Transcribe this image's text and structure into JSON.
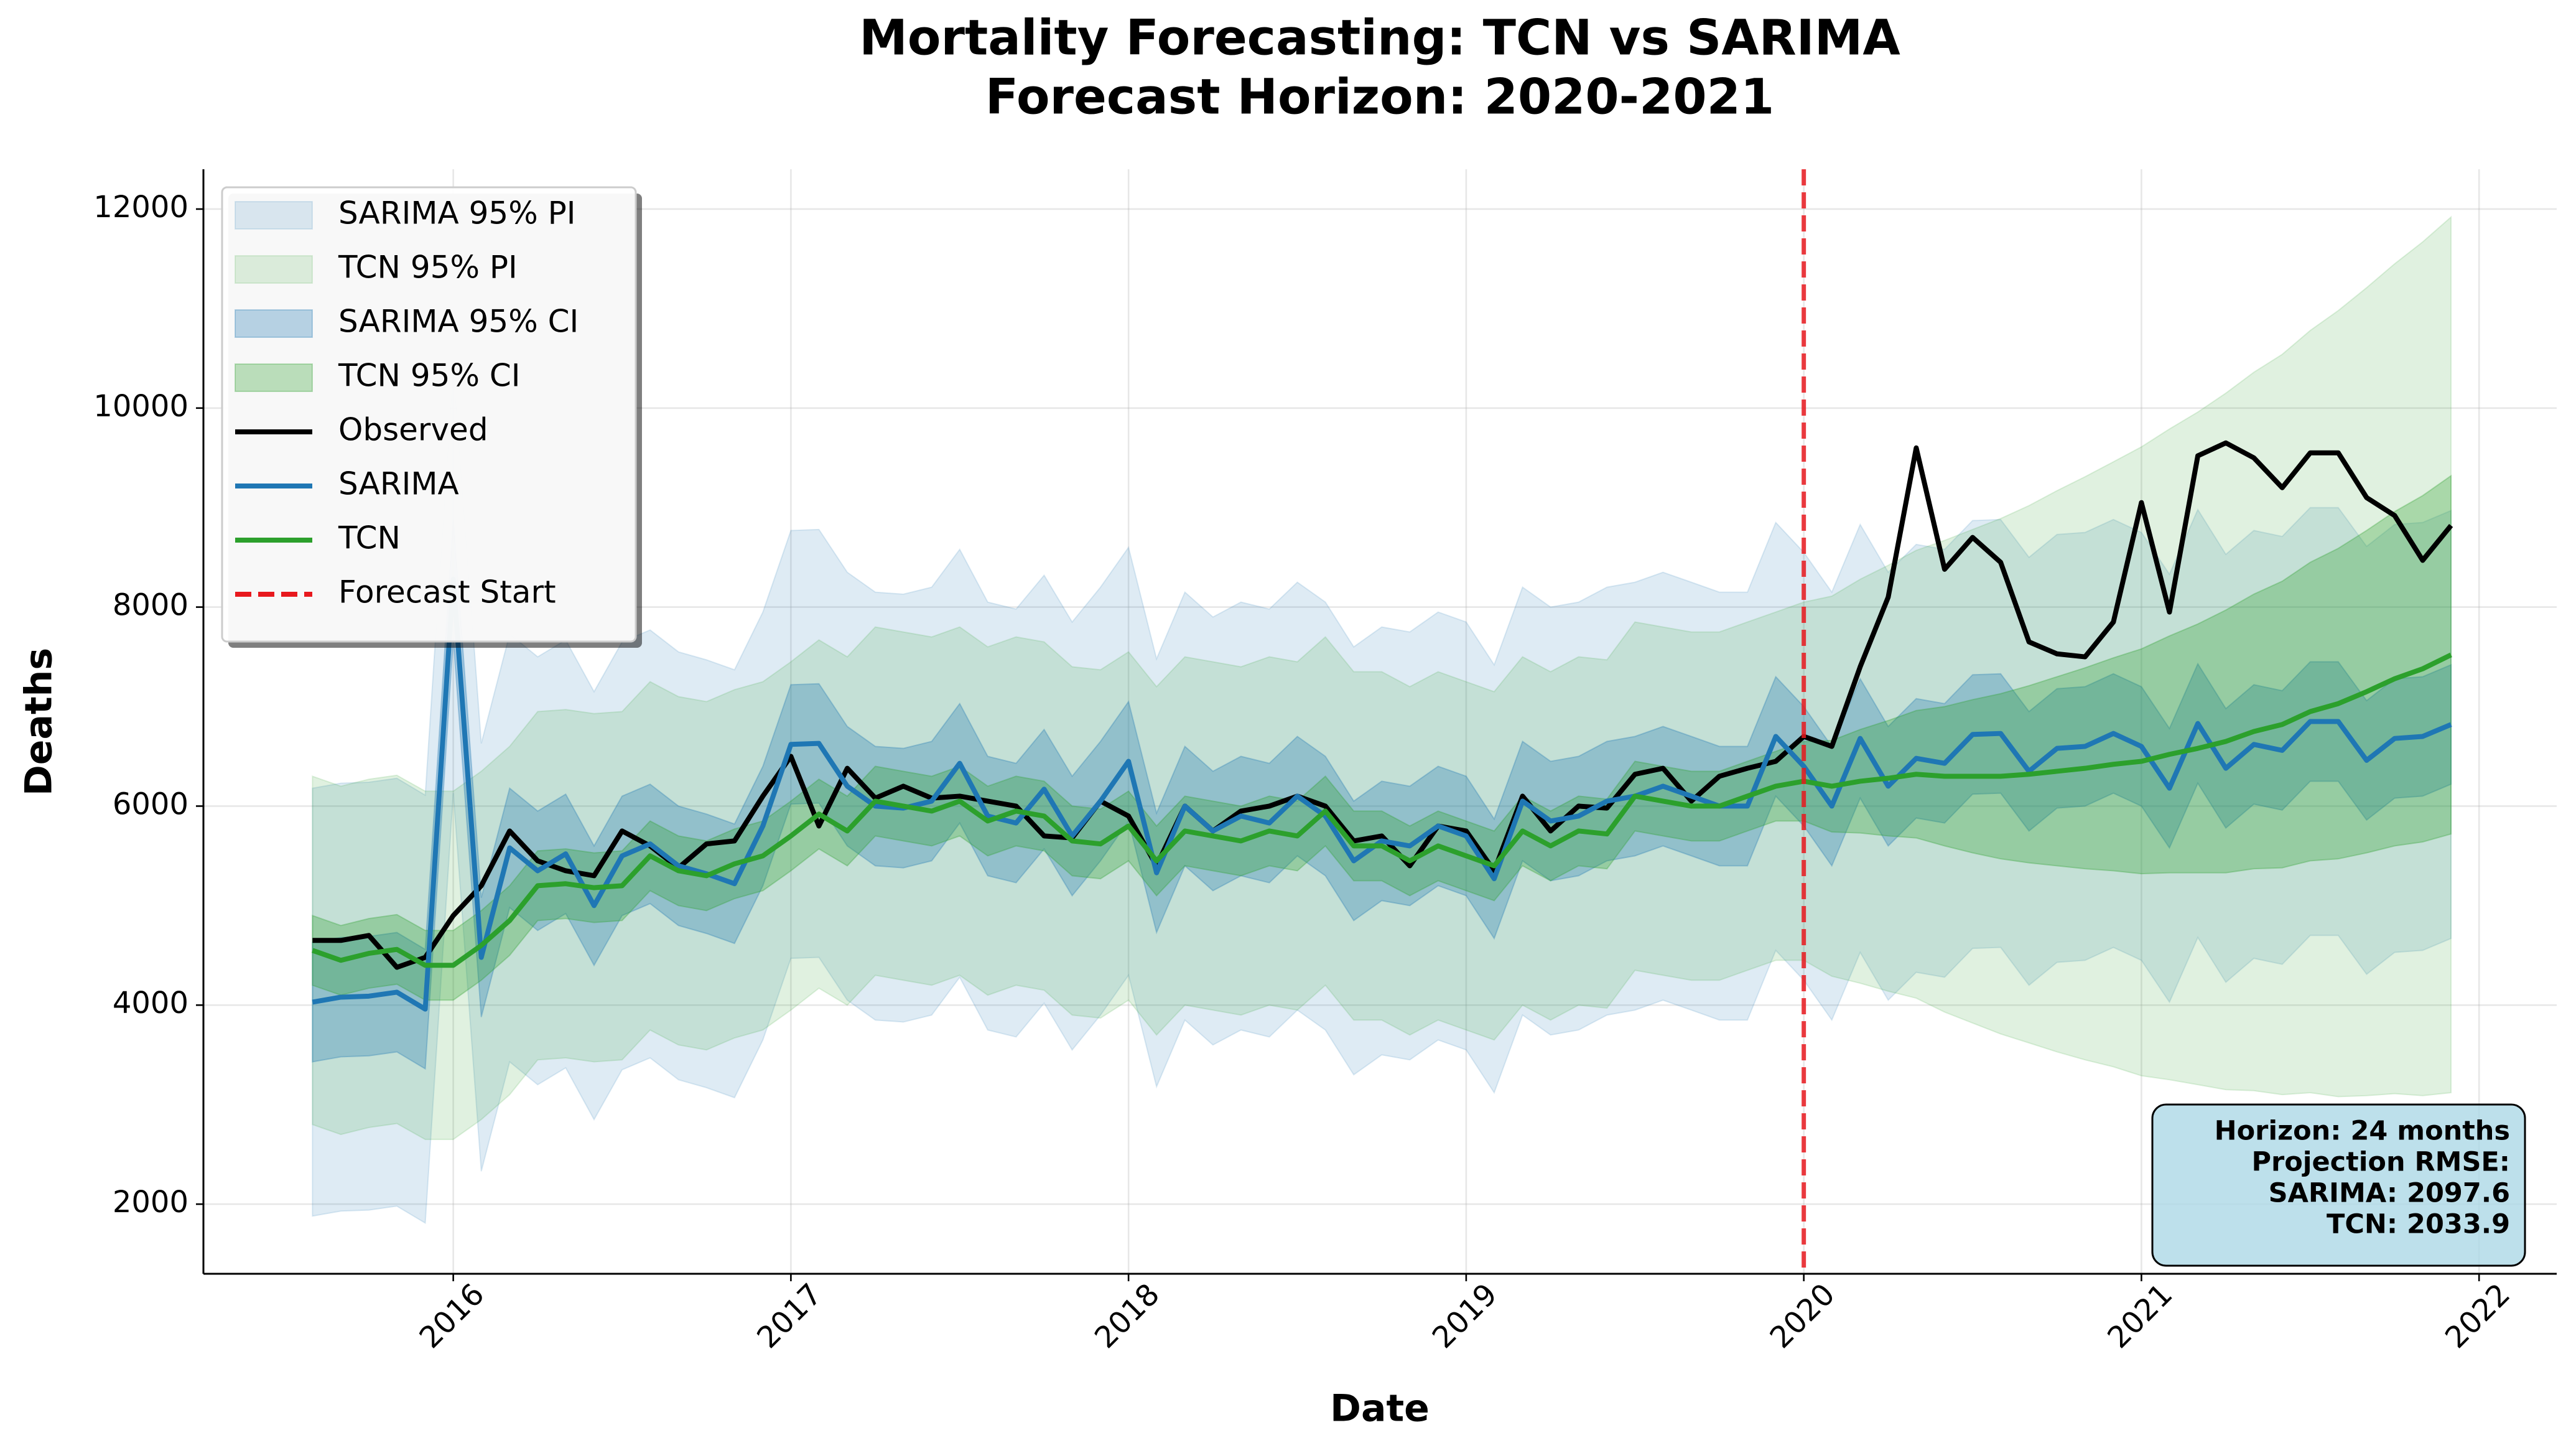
{
  "chart_data": {
    "type": "line",
    "title": "Mortality Forecasting: TCN vs SARIMA",
    "subtitle": "Forecast Horizon: 2020-2021",
    "x_label": "Date",
    "y_label": "Deaths",
    "xlim": [
      2015.26,
      2022.23
    ],
    "xticks": [
      2016,
      2017,
      2018,
      2019,
      2020,
      2021,
      2022
    ],
    "ylim": [
      1300,
      12400
    ],
    "yticks": [
      2000,
      4000,
      6000,
      8000,
      10000,
      12000
    ],
    "grid": true,
    "legend": "upper left",
    "x": [
      2015.583,
      2015.667,
      2015.75,
      2015.833,
      2015.917,
      2016,
      2016.083,
      2016.167,
      2016.25,
      2016.333,
      2016.417,
      2016.5,
      2016.583,
      2016.667,
      2016.75,
      2016.833,
      2016.917,
      2017,
      2017.083,
      2017.167,
      2017.25,
      2017.333,
      2017.417,
      2017.5,
      2017.583,
      2017.667,
      2017.75,
      2017.833,
      2017.917,
      2018,
      2018.083,
      2018.167,
      2018.25,
      2018.333,
      2018.417,
      2018.5,
      2018.583,
      2018.667,
      2018.75,
      2018.833,
      2018.917,
      2019,
      2019.083,
      2019.167,
      2019.25,
      2019.333,
      2019.417,
      2019.5,
      2019.583,
      2019.667,
      2019.75,
      2019.833,
      2019.917,
      2020,
      2020.083,
      2020.167,
      2020.25,
      2020.333,
      2020.417,
      2020.5,
      2020.583,
      2020.667,
      2020.75,
      2020.833,
      2020.917,
      2021,
      2021.083,
      2021.167,
      2021.25,
      2021.333,
      2021.417,
      2021.5,
      2021.583,
      2021.667,
      2021.75,
      2021.833,
      2021.917
    ],
    "bands": [
      {
        "name": "SARIMA 95% PI",
        "color": "#1f77b4",
        "opacity": 0.15,
        "upper": [
          6180,
          6230,
          6240,
          6280,
          6110,
          10430,
          6630,
          7730,
          7500,
          7670,
          7150,
          7650,
          7770,
          7550,
          7470,
          7370,
          7950,
          8770,
          8780,
          8350,
          8150,
          8130,
          8200,
          8580,
          8050,
          7980,
          8320,
          7850,
          8200,
          8600,
          7480,
          8150,
          7900,
          8050,
          7980,
          8250,
          8050,
          7600,
          7800,
          7750,
          7950,
          7850,
          7420,
          8200,
          8000,
          8050,
          8200,
          8250,
          8350,
          8250,
          8150,
          8150,
          8850,
          8550,
          8150,
          8830,
          8350,
          8630,
          8580,
          8870,
          8880,
          8500,
          8730,
          8750,
          8880,
          8750,
          8330,
          8980,
          8530,
          8770,
          8710,
          9000,
          9000,
          8610,
          8830,
          8850,
          8970
        ],
        "lower": [
          1880,
          1930,
          1940,
          1980,
          1810,
          6130,
          2330,
          3430,
          3200,
          3370,
          2850,
          3350,
          3470,
          3250,
          3170,
          3070,
          3650,
          4470,
          4480,
          4050,
          3850,
          3830,
          3900,
          4280,
          3750,
          3680,
          4020,
          3550,
          3900,
          4300,
          3180,
          3850,
          3600,
          3750,
          3680,
          3950,
          3750,
          3300,
          3500,
          3450,
          3650,
          3550,
          3120,
          3900,
          3700,
          3750,
          3900,
          3950,
          4050,
          3950,
          3850,
          3850,
          4550,
          4250,
          3850,
          4530,
          4050,
          4330,
          4280,
          4570,
          4580,
          4200,
          4430,
          4450,
          4580,
          4450,
          4030,
          4680,
          4230,
          4470,
          4410,
          4700,
          4700,
          4310,
          4530,
          4550,
          4670
        ]
      },
      {
        "name": "TCN 95% PI",
        "color": "#2ca02c",
        "opacity": 0.15,
        "upper": [
          6300,
          6200,
          6270,
          6310,
          6150,
          6150,
          6350,
          6600,
          6950,
          6970,
          6930,
          6950,
          7250,
          7100,
          7050,
          7170,
          7250,
          7450,
          7670,
          7500,
          7800,
          7750,
          7700,
          7800,
          7600,
          7700,
          7650,
          7400,
          7370,
          7550,
          7200,
          7500,
          7450,
          7400,
          7500,
          7450,
          7700,
          7350,
          7350,
          7200,
          7350,
          7250,
          7150,
          7500,
          7350,
          7500,
          7470,
          7850,
          7800,
          7750,
          7750,
          7850,
          7950,
          8050,
          8110,
          8280,
          8420,
          8570,
          8670,
          8780,
          8890,
          9020,
          9170,
          9310,
          9460,
          9610,
          9790,
          9960,
          10150,
          10360,
          10540,
          10780,
          10980,
          11210,
          11450,
          11670,
          11920
        ],
        "lower": [
          2800,
          2700,
          2770,
          2810,
          2650,
          2650,
          2850,
          3100,
          3450,
          3470,
          3430,
          3450,
          3750,
          3600,
          3550,
          3670,
          3750,
          3950,
          4170,
          4000,
          4300,
          4250,
          4200,
          4300,
          4100,
          4200,
          4150,
          3900,
          3870,
          4050,
          3700,
          4000,
          3950,
          3900,
          4000,
          3950,
          4200,
          3850,
          3850,
          3700,
          3850,
          3750,
          3650,
          4000,
          3850,
          4000,
          3970,
          4350,
          4300,
          4250,
          4250,
          4350,
          4450,
          4450,
          4290,
          4220,
          4140,
          4070,
          3930,
          3820,
          3710,
          3620,
          3530,
          3450,
          3380,
          3290,
          3250,
          3200,
          3150,
          3140,
          3100,
          3120,
          3080,
          3090,
          3110,
          3090,
          3120
        ]
      },
      {
        "name": "SARIMA 95% CI",
        "color": "#1f77b4",
        "opacity": 0.3,
        "upper": [
          4630,
          4680,
          4690,
          4730,
          4560,
          8880,
          5080,
          6180,
          5950,
          6120,
          5600,
          6100,
          6220,
          6000,
          5920,
          5820,
          6400,
          7220,
          7230,
          6800,
          6600,
          6580,
          6650,
          7030,
          6500,
          6430,
          6770,
          6300,
          6650,
          7050,
          5930,
          6600,
          6350,
          6500,
          6430,
          6700,
          6500,
          6050,
          6250,
          6200,
          6400,
          6300,
          5870,
          6650,
          6450,
          6500,
          6650,
          6700,
          6800,
          6700,
          6600,
          6600,
          7300,
          7000,
          6600,
          7280,
          6800,
          7080,
          7030,
          7320,
          7330,
          6950,
          7180,
          7200,
          7330,
          7200,
          6780,
          7430,
          6980,
          7220,
          7160,
          7450,
          7450,
          7060,
          7280,
          7300,
          7420
        ],
        "lower": [
          3430,
          3480,
          3490,
          3530,
          3360,
          7680,
          3880,
          4980,
          4750,
          4920,
          4400,
          4900,
          5020,
          4800,
          4720,
          4620,
          5200,
          6020,
          6030,
          5600,
          5400,
          5380,
          5450,
          5830,
          5300,
          5230,
          5570,
          5100,
          5450,
          5850,
          4730,
          5400,
          5150,
          5300,
          5230,
          5500,
          5300,
          4850,
          5050,
          5000,
          5200,
          5100,
          4670,
          5450,
          5250,
          5300,
          5450,
          5500,
          5600,
          5500,
          5400,
          5400,
          6100,
          5800,
          5400,
          6080,
          5600,
          5880,
          5830,
          6120,
          6130,
          5750,
          5980,
          6000,
          6130,
          6000,
          5580,
          6230,
          5780,
          6020,
          5960,
          6250,
          6250,
          5860,
          6080,
          6100,
          6220
        ]
      },
      {
        "name": "TCN 95% CI",
        "color": "#2ca02c",
        "opacity": 0.3,
        "upper": [
          4900,
          4800,
          4870,
          4910,
          4750,
          4750,
          4950,
          5200,
          5550,
          5570,
          5530,
          5550,
          5850,
          5700,
          5650,
          5770,
          5850,
          6050,
          6270,
          6100,
          6400,
          6350,
          6300,
          6400,
          6200,
          6300,
          6250,
          6000,
          5970,
          6150,
          5800,
          6100,
          6050,
          6000,
          6100,
          6050,
          6300,
          5950,
          5950,
          5800,
          5950,
          5850,
          5750,
          6100,
          5950,
          6100,
          6070,
          6450,
          6400,
          6350,
          6350,
          6450,
          6550,
          6650,
          6660,
          6770,
          6860,
          6960,
          7000,
          7070,
          7130,
          7210,
          7300,
          7390,
          7490,
          7580,
          7710,
          7830,
          7970,
          8130,
          8260,
          8450,
          8590,
          8770,
          8960,
          9120,
          9320
        ],
        "lower": [
          4200,
          4100,
          4170,
          4210,
          4050,
          4050,
          4250,
          4500,
          4850,
          4870,
          4830,
          4850,
          5150,
          5000,
          4950,
          5070,
          5150,
          5350,
          5570,
          5400,
          5700,
          5650,
          5600,
          5700,
          5500,
          5600,
          5550,
          5300,
          5270,
          5450,
          5100,
          5400,
          5350,
          5300,
          5400,
          5350,
          5600,
          5250,
          5250,
          5100,
          5250,
          5150,
          5050,
          5400,
          5250,
          5400,
          5370,
          5750,
          5700,
          5650,
          5650,
          5750,
          5850,
          5850,
          5740,
          5730,
          5700,
          5680,
          5600,
          5530,
          5470,
          5430,
          5400,
          5370,
          5350,
          5320,
          5330,
          5330,
          5330,
          5370,
          5380,
          5450,
          5470,
          5530,
          5600,
          5640,
          5720
        ]
      }
    ],
    "series": [
      {
        "name": "Observed",
        "color": "#000000",
        "values": [
          4650,
          4650,
          4700,
          4380,
          4480,
          4900,
          5200,
          5750,
          5450,
          5350,
          5300,
          5750,
          5600,
          5380,
          5620,
          5650,
          6100,
          6500,
          5800,
          6380,
          6080,
          6200,
          6080,
          6100,
          6050,
          6000,
          5700,
          5680,
          6050,
          5900,
          5400,
          6000,
          5750,
          5950,
          6000,
          6100,
          6000,
          5650,
          5700,
          5400,
          5800,
          5750,
          5350,
          6100,
          5750,
          6000,
          5980,
          6320,
          6380,
          6050,
          6300,
          6380,
          6450,
          6700,
          6600,
          7400,
          8100,
          9600,
          8380,
          8700,
          8450,
          7650,
          7530,
          7500,
          7850,
          9050,
          7950,
          9520,
          9650,
          9500,
          9200,
          9550,
          9550,
          9100,
          8920,
          8470,
          8820
        ]
      },
      {
        "name": "SARIMA",
        "color": "#1f77b4",
        "values": [
          4030,
          4080,
          4090,
          4130,
          3960,
          8280,
          4480,
          5580,
          5350,
          5520,
          5000,
          5500,
          5620,
          5400,
          5320,
          5220,
          5800,
          6620,
          6630,
          6200,
          6000,
          5980,
          6050,
          6430,
          5900,
          5830,
          6170,
          5700,
          6050,
          6450,
          5330,
          6000,
          5750,
          5900,
          5830,
          6100,
          5900,
          5450,
          5650,
          5600,
          5800,
          5700,
          5270,
          6050,
          5850,
          5900,
          6050,
          6100,
          6200,
          6100,
          6000,
          6000,
          6700,
          6400,
          6000,
          6680,
          6200,
          6480,
          6430,
          6720,
          6730,
          6350,
          6580,
          6600,
          6730,
          6600,
          6180,
          6830,
          6380,
          6620,
          6560,
          6850,
          6850,
          6460,
          6680,
          6700,
          6820
        ]
      },
      {
        "name": "TCN",
        "color": "#2ca02c",
        "values": [
          4550,
          4450,
          4520,
          4560,
          4400,
          4400,
          4600,
          4850,
          5200,
          5220,
          5180,
          5200,
          5500,
          5350,
          5300,
          5420,
          5500,
          5700,
          5920,
          5750,
          6050,
          6000,
          5950,
          6050,
          5850,
          5950,
          5900,
          5650,
          5620,
          5800,
          5450,
          5750,
          5700,
          5650,
          5750,
          5700,
          5950,
          5600,
          5600,
          5450,
          5600,
          5500,
          5400,
          5750,
          5600,
          5750,
          5720,
          6100,
          6050,
          6000,
          6000,
          6100,
          6200,
          6250,
          6200,
          6250,
          6280,
          6320,
          6300,
          6300,
          6300,
          6320,
          6350,
          6380,
          6420,
          6450,
          6520,
          6580,
          6650,
          6750,
          6820,
          6950,
          7030,
          7150,
          7280,
          7380,
          7520
        ]
      }
    ],
    "forecast_start": {
      "name": "Forecast Start",
      "x": 2020,
      "color": "#e8191e"
    },
    "annotation": [
      "Horizon: 24 months",
      "Projection RMSE:",
      "SARIMA: 2097.6",
      "TCN: 2033.9"
    ]
  }
}
